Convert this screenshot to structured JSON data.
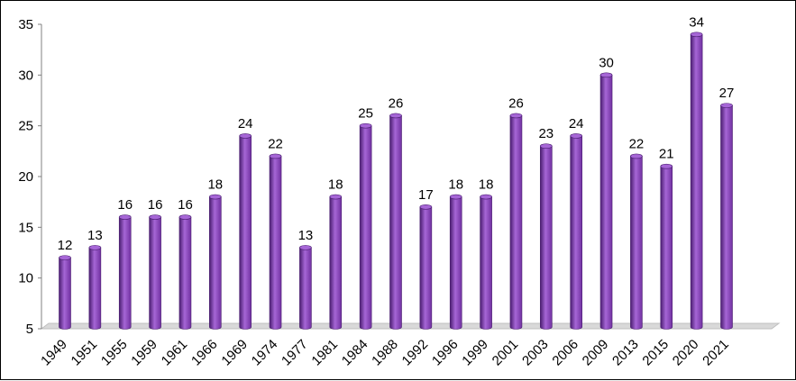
{
  "chart_data": {
    "type": "bar",
    "categories": [
      "1949",
      "1951",
      "1955",
      "1959",
      "1961",
      "1966",
      "1969",
      "1974",
      "1977",
      "1981",
      "1984",
      "1988",
      "1992",
      "1996",
      "1999",
      "2001",
      "2003",
      "2006",
      "2009",
      "2013",
      "2015",
      "2020",
      "2021"
    ],
    "values": [
      12,
      13,
      16,
      16,
      16,
      18,
      24,
      22,
      13,
      18,
      25,
      26,
      17,
      18,
      18,
      26,
      23,
      24,
      30,
      22,
      21,
      34,
      27
    ],
    "ylim": [
      5,
      35
    ],
    "yticks": [
      "5",
      "10",
      "15",
      "20",
      "25",
      "30",
      "35"
    ],
    "data_labels": [
      "12",
      "13",
      "16",
      "16",
      "16",
      "18",
      "24",
      "22",
      "13",
      "18",
      "25",
      "26",
      "17",
      "18",
      "18",
      "26",
      "23",
      "24",
      "30",
      "22",
      "21",
      "34",
      "27"
    ],
    "grid": false,
    "legend": "none",
    "colors": {
      "bar": "#7030a0",
      "bar_highlight": "#a666d6",
      "bar_dark": "#4a1d70",
      "floor": "#d9d9d9",
      "axis": "#808080"
    }
  }
}
